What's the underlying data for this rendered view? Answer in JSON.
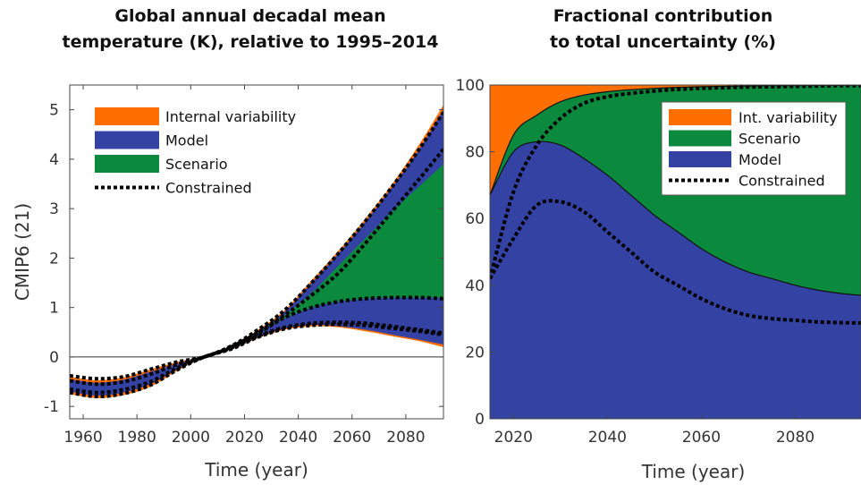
{
  "colors": {
    "internal": "#ff6f00",
    "model": "#3443a3",
    "scenario": "#0b8a3e",
    "constrained": "#000000"
  },
  "chart_data": [
    {
      "type": "area",
      "title": [
        "Global annual decadal mean",
        "temperature (K), relative to 1995–2014"
      ],
      "xlabel": "Time (year)",
      "ylabel": "CMIP6 (21)",
      "xlim": [
        1955,
        2094
      ],
      "ylim": [
        -1.25,
        5.5
      ],
      "xticks": [
        1960,
        1980,
        2000,
        2020,
        2040,
        2060,
        2080
      ],
      "yticks": [
        -1,
        0,
        1,
        2,
        3,
        4,
        5
      ],
      "grid": false,
      "legend_position": "top-left",
      "legend": [
        {
          "label": "Internal variability",
          "kind": "patch",
          "color_key": "internal"
        },
        {
          "label": "Model",
          "kind": "patch",
          "color_key": "model"
        },
        {
          "label": "Scenario",
          "kind": "patch",
          "color_key": "scenario"
        },
        {
          "label": "Constrained",
          "kind": "dotted",
          "color_key": "constrained"
        }
      ],
      "x": [
        1955,
        1965,
        1975,
        1985,
        1995,
        2005,
        2015,
        2025,
        2035,
        2045,
        2055,
        2065,
        2075,
        2085,
        2094
      ],
      "bands": {
        "internal_outer_upper": [
          -0.4,
          -0.47,
          -0.41,
          -0.25,
          -0.1,
          0.0,
          0.22,
          0.55,
          0.95,
          1.55,
          2.15,
          2.8,
          3.5,
          4.3,
          5.1
        ],
        "model_upper": [
          -0.45,
          -0.52,
          -0.46,
          -0.3,
          -0.14,
          0.0,
          0.2,
          0.52,
          0.92,
          1.5,
          2.1,
          2.74,
          3.44,
          4.2,
          5.0
        ],
        "scenario_upper": [
          null,
          null,
          null,
          null,
          null,
          null,
          0.2,
          0.5,
          0.85,
          1.3,
          1.85,
          2.4,
          2.95,
          3.45,
          3.9
        ],
        "scenario_lower": [
          null,
          null,
          null,
          null,
          null,
          null,
          0.2,
          0.48,
          0.78,
          1.0,
          1.12,
          1.18,
          1.2,
          1.2,
          1.2
        ],
        "model_lower": [
          -0.7,
          -0.78,
          -0.72,
          -0.55,
          -0.25,
          0.0,
          0.17,
          0.4,
          0.58,
          0.65,
          0.62,
          0.55,
          0.45,
          0.35,
          0.25
        ],
        "internal_outer_lower": [
          -0.75,
          -0.83,
          -0.77,
          -0.6,
          -0.28,
          0.0,
          0.15,
          0.38,
          0.55,
          0.62,
          0.6,
          0.52,
          0.42,
          0.32,
          0.2
        ]
      },
      "constrained_lines": [
        {
          "x": [
            1955,
            1965,
            1975,
            1985,
            1995,
            2005,
            2015,
            2025,
            2035,
            2045,
            2055,
            2065,
            2075,
            2085,
            2094
          ],
          "y": [
            -0.38,
            -0.44,
            -0.4,
            -0.25,
            -0.1,
            0.0,
            0.22,
            0.55,
            0.95,
            1.5,
            2.1,
            2.75,
            3.45,
            4.2,
            4.95
          ]
        },
        {
          "x": [
            1955,
            1965,
            1975,
            1985,
            1995,
            2005,
            2015,
            2025,
            2035,
            2045,
            2055,
            2065,
            2075,
            2085,
            2094
          ],
          "y": [
            -0.48,
            -0.55,
            -0.5,
            -0.35,
            -0.15,
            0.0,
            0.2,
            0.5,
            0.85,
            1.25,
            1.7,
            2.3,
            2.95,
            3.6,
            4.2
          ]
        },
        {
          "x": [
            2015,
            2025,
            2035,
            2045,
            2055,
            2065,
            2075,
            2085,
            2094
          ],
          "y": [
            0.2,
            0.48,
            0.8,
            1.0,
            1.12,
            1.18,
            1.2,
            1.2,
            1.18
          ]
        },
        {
          "x": [
            1955,
            1965,
            1975,
            1985,
            1995,
            2005,
            2015,
            2025,
            2035,
            2045,
            2055,
            2065,
            2075,
            2085,
            2094
          ],
          "y": [
            -0.65,
            -0.72,
            -0.66,
            -0.5,
            -0.22,
            0.0,
            0.18,
            0.42,
            0.6,
            0.68,
            0.7,
            0.68,
            0.62,
            0.55,
            0.48
          ]
        },
        {
          "x": [
            1955,
            1965,
            1975,
            1985,
            1995,
            2005,
            2015,
            2025,
            2035,
            2045,
            2055,
            2065,
            2075,
            2085,
            2094
          ],
          "y": [
            -0.72,
            -0.8,
            -0.74,
            -0.57,
            -0.26,
            0.0,
            0.16,
            0.4,
            0.57,
            0.64,
            0.66,
            0.64,
            0.58,
            0.52,
            0.45
          ]
        }
      ]
    },
    {
      "type": "area",
      "stacked": true,
      "title": [
        "Fractional contribution",
        "to total uncertainty (%)"
      ],
      "xlabel": "Time (year)",
      "ylabel": "",
      "xlim": [
        2015,
        2094
      ],
      "ylim": [
        0,
        100
      ],
      "xticks": [
        2020,
        2040,
        2060,
        2080
      ],
      "yticks": [
        0,
        20,
        40,
        60,
        80,
        100
      ],
      "grid": false,
      "legend_position": "top-right",
      "legend": [
        {
          "label": "Int. variability",
          "kind": "patch",
          "color_key": "internal"
        },
        {
          "label": "Scenario",
          "kind": "patch",
          "color_key": "scenario"
        },
        {
          "label": "Model",
          "kind": "patch",
          "color_key": "model"
        },
        {
          "label": "Constrained",
          "kind": "dotted",
          "color_key": "constrained"
        }
      ],
      "x": [
        2015,
        2020,
        2025,
        2030,
        2035,
        2040,
        2045,
        2050,
        2055,
        2060,
        2065,
        2070,
        2075,
        2080,
        2085,
        2090,
        2094
      ],
      "model_top": [
        67,
        80,
        83,
        82,
        78,
        73,
        67,
        61,
        56,
        51,
        47,
        44,
        42,
        40,
        38.5,
        37.5,
        37
      ],
      "scenario_top": [
        67,
        85,
        91,
        95,
        97,
        98,
        98.6,
        99,
        99.3,
        99.5,
        99.6,
        99.7,
        99.8,
        99.8,
        99.9,
        99.9,
        100
      ],
      "constrained_lines": [
        {
          "x": [
            2015,
            2020,
            2025,
            2030,
            2035,
            2040,
            2045,
            2050,
            2055,
            2060,
            2065,
            2070,
            2075,
            2080,
            2085,
            2090,
            2094
          ],
          "y": [
            42,
            54,
            64,
            65,
            62,
            56,
            50,
            44,
            40,
            36,
            33,
            31,
            30,
            29.5,
            29,
            28.8,
            28.7
          ]
        },
        {
          "x": [
            2015,
            2020,
            2025,
            2030,
            2035,
            2040,
            2045,
            2050,
            2055,
            2060,
            2065,
            2070,
            2075,
            2080,
            2085,
            2090,
            2094
          ],
          "y": [
            42,
            68,
            82,
            90,
            94.5,
            96.5,
            97.5,
            98.2,
            98.7,
            99,
            99.2,
            99.4,
            99.5,
            99.6,
            99.7,
            99.8,
            99.8
          ]
        }
      ]
    }
  ]
}
